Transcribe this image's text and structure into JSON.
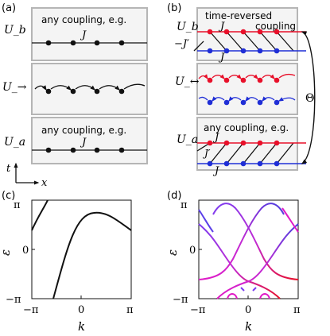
{
  "panels": {
    "a": {
      "label": "(a)",
      "stages": [
        {
          "label": "U_b",
          "text": "any coupling, e.g.",
          "coupling": "J"
        },
        {
          "label": "U_→"
        },
        {
          "label": "U_a",
          "text": "any coupling, e.g.",
          "coupling": "J"
        }
      ],
      "axes": {
        "t": "t",
        "x": "x"
      }
    },
    "b": {
      "label": "(b)",
      "stages": [
        {
          "label": "U_b",
          "text_line1": "time-reversed",
          "text_line2": "coupling",
          "coupling_top": "J",
          "coupling_side": "−J′",
          "coupling_bottom": "J"
        },
        {
          "label": "U_↔"
        },
        {
          "label": "U_a",
          "text": "any coupling, e.g.",
          "coupling_top": "J",
          "coupling_mid": "J′",
          "coupling_bottom": "J"
        }
      ],
      "symmetry": "Θ"
    },
    "c": {
      "label": "(c)",
      "xlabel": "k",
      "ylabel": "ε",
      "xticks": [
        "−π",
        "0",
        "π"
      ],
      "yticks": [
        "π",
        "0",
        "−π"
      ]
    },
    "d": {
      "label": "(d)",
      "xlabel": "k",
      "ylabel": "ε",
      "xticks": [
        "−π",
        "0",
        "π"
      ],
      "yticks": [
        "π",
        "0",
        "−π"
      ]
    }
  },
  "colors": {
    "red": "#e8102a",
    "blue": "#1f2ed6",
    "magenta": "#e11ac6",
    "purple": "#7a3cf0",
    "box_fill": "#f4f4f4",
    "box_stroke": "#b5b5b5"
  }
}
